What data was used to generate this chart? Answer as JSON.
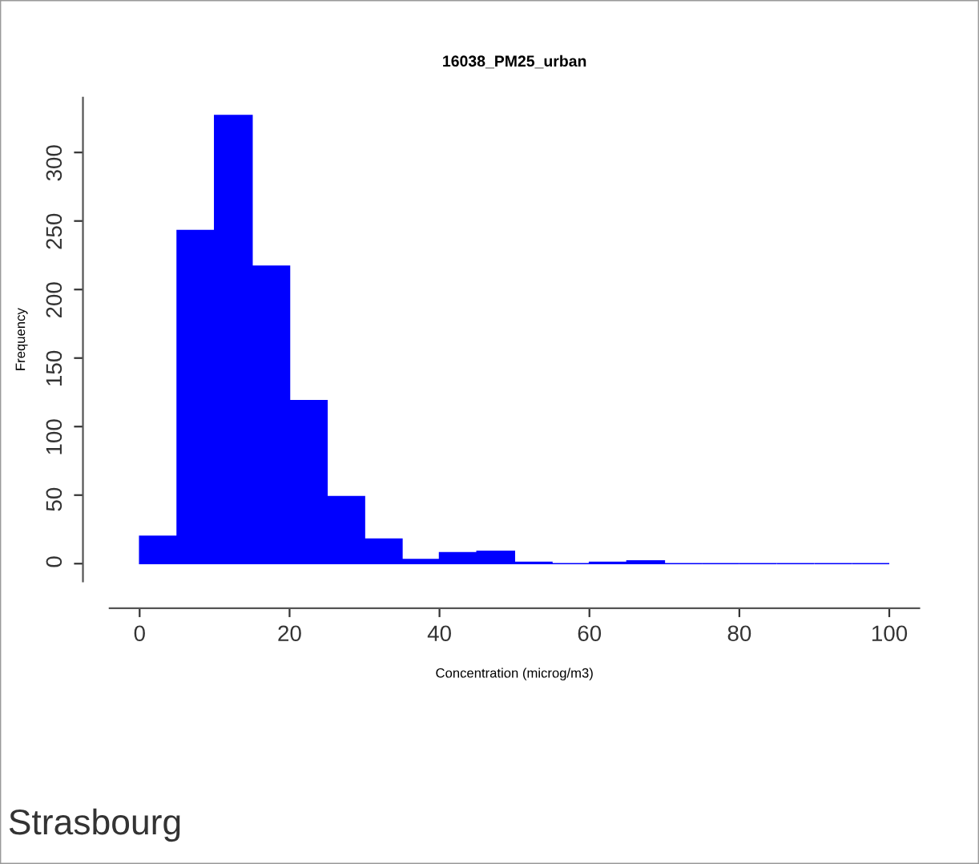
{
  "chart_data": {
    "type": "histogram",
    "title": "16038_PM25_urban",
    "xlabel": "Concentration (microg/m3)",
    "ylabel": "Frequency",
    "bins": [
      0,
      5,
      10,
      15,
      20,
      25,
      30,
      35,
      40,
      45,
      50,
      55,
      60,
      65,
      70,
      75,
      80,
      85,
      90,
      95,
      100
    ],
    "values": [
      20,
      243,
      327,
      217,
      119,
      49,
      18,
      3,
      8,
      9,
      1,
      0,
      1,
      2,
      0,
      0,
      0,
      0,
      0,
      0
    ],
    "color": "#0000ff",
    "xlim": [
      -4,
      104
    ],
    "ylim": [
      -13,
      340
    ],
    "xticks": [
      0,
      20,
      40,
      60,
      80,
      100
    ],
    "yticks": [
      0,
      50,
      100,
      150,
      200,
      250,
      300
    ],
    "grid": false,
    "annotations": [
      "Strasbourg"
    ]
  }
}
